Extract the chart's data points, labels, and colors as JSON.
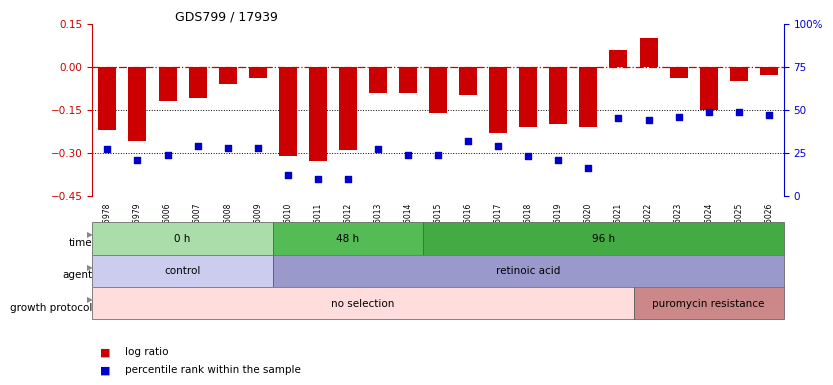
{
  "title": "GDS799 / 17939",
  "samples": [
    "GSM25978",
    "GSM25979",
    "GSM26006",
    "GSM26007",
    "GSM26008",
    "GSM26009",
    "GSM26010",
    "GSM26011",
    "GSM26012",
    "GSM26013",
    "GSM26014",
    "GSM26015",
    "GSM26016",
    "GSM26017",
    "GSM26018",
    "GSM26019",
    "GSM26020",
    "GSM26021",
    "GSM26022",
    "GSM26023",
    "GSM26024",
    "GSM26025",
    "GSM26026"
  ],
  "log_ratio": [
    -0.22,
    -0.26,
    -0.12,
    -0.11,
    -0.06,
    -0.04,
    -0.31,
    -0.33,
    -0.29,
    -0.09,
    -0.09,
    -0.16,
    -0.1,
    -0.23,
    -0.21,
    -0.2,
    -0.21,
    0.06,
    0.1,
    -0.04,
    -0.15,
    -0.05,
    -0.03
  ],
  "percentile": [
    27,
    21,
    24,
    29,
    28,
    28,
    12,
    10,
    10,
    27,
    24,
    24,
    32,
    29,
    23,
    21,
    16,
    45,
    44,
    46,
    49,
    49,
    47
  ],
  "bar_color": "#cc0000",
  "dot_color": "#0000cc",
  "bg_color": "#ffffff",
  "ylim_left": [
    -0.45,
    0.15
  ],
  "ylim_right": [
    0,
    100
  ],
  "yticks_left": [
    -0.45,
    -0.3,
    -0.15,
    0.0,
    0.15
  ],
  "yticks_right": [
    0,
    25,
    50,
    75,
    100
  ],
  "ytick_labels_right": [
    "0",
    "25",
    "50",
    "75",
    "100%"
  ],
  "time_groups": [
    {
      "label": "0 h",
      "start": 0,
      "end": 5,
      "color": "#aaddaa"
    },
    {
      "label": "48 h",
      "start": 6,
      "end": 10,
      "color": "#55bb55"
    },
    {
      "label": "96 h",
      "start": 11,
      "end": 22,
      "color": "#44aa44"
    }
  ],
  "agent_groups": [
    {
      "label": "control",
      "start": 0,
      "end": 5,
      "color": "#ccccee"
    },
    {
      "label": "retinoic acid",
      "start": 6,
      "end": 22,
      "color": "#9999cc"
    }
  ],
  "growth_groups": [
    {
      "label": "no selection",
      "start": 0,
      "end": 17,
      "color": "#ffdddd"
    },
    {
      "label": "puromycin resistance",
      "start": 18,
      "end": 22,
      "color": "#cc8888"
    }
  ]
}
